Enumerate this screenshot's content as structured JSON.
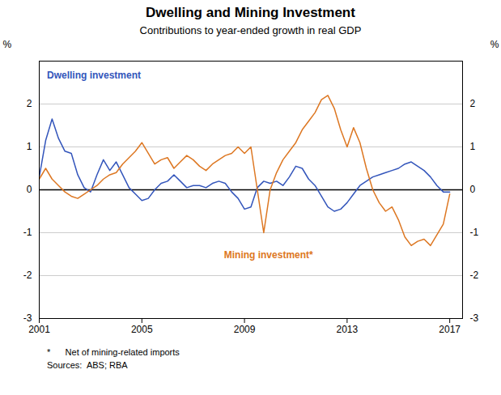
{
  "chart_data": {
    "type": "line",
    "title": "Dwelling and Mining Investment",
    "subtitle": "Contributions to year-ended growth in real GDP",
    "ylabel": "%",
    "y2label": "%",
    "xlim": [
      2001.0,
      2017.5
    ],
    "xticks": [
      2001,
      2005,
      2009,
      2013,
      2017
    ],
    "ylim": [
      -3,
      3
    ],
    "yticks": [
      -3,
      -2,
      -1,
      0,
      1,
      2,
      {
        "value": 3,
        "label": ""
      }
    ],
    "grid": true,
    "x": [
      2001.0,
      2001.25,
      2001.5,
      2001.75,
      2002.0,
      2002.25,
      2002.5,
      2002.75,
      2003.0,
      2003.25,
      2003.5,
      2003.75,
      2004.0,
      2004.25,
      2004.5,
      2004.75,
      2005.0,
      2005.25,
      2005.5,
      2005.75,
      2006.0,
      2006.25,
      2006.5,
      2006.75,
      2007.0,
      2007.25,
      2007.5,
      2007.75,
      2008.0,
      2008.25,
      2008.5,
      2008.75,
      2009.0,
      2009.25,
      2009.5,
      2009.75,
      2010.0,
      2010.25,
      2010.5,
      2010.75,
      2011.0,
      2011.25,
      2011.5,
      2011.75,
      2012.0,
      2012.25,
      2012.5,
      2012.75,
      2013.0,
      2013.25,
      2013.5,
      2013.75,
      2014.0,
      2014.25,
      2014.5,
      2014.75,
      2015.0,
      2015.25,
      2015.5,
      2015.75,
      2016.0,
      2016.25,
      2016.5,
      2016.75,
      2017.0
    ],
    "series": [
      {
        "name": "Dwelling investment",
        "color": "#3355bb",
        "values": [
          0.3,
          1.15,
          1.65,
          1.2,
          0.9,
          0.85,
          0.35,
          0.05,
          -0.05,
          0.35,
          0.7,
          0.45,
          0.65,
          0.35,
          0.05,
          -0.1,
          -0.25,
          -0.2,
          0.0,
          0.15,
          0.2,
          0.35,
          0.2,
          0.05,
          0.1,
          0.1,
          0.05,
          0.15,
          0.2,
          0.15,
          -0.05,
          -0.2,
          -0.45,
          -0.4,
          0.05,
          0.2,
          0.15,
          0.2,
          0.1,
          0.3,
          0.55,
          0.5,
          0.25,
          0.1,
          -0.15,
          -0.4,
          -0.5,
          -0.45,
          -0.3,
          -0.1,
          0.1,
          0.2,
          0.3,
          0.35,
          0.4,
          0.45,
          0.5,
          0.6,
          0.65,
          0.55,
          0.45,
          0.3,
          0.1,
          -0.05,
          -0.05
        ]
      },
      {
        "name": "Mining investment*",
        "color": "#dd7722",
        "values": [
          0.25,
          0.5,
          0.25,
          0.1,
          -0.05,
          -0.15,
          -0.2,
          -0.1,
          0.0,
          0.1,
          0.25,
          0.35,
          0.4,
          0.6,
          0.75,
          0.9,
          1.1,
          0.85,
          0.6,
          0.7,
          0.75,
          0.5,
          0.65,
          0.8,
          0.7,
          0.55,
          0.45,
          0.6,
          0.7,
          0.8,
          0.85,
          1.0,
          0.85,
          1.0,
          0.0,
          -1.0,
          0.0,
          0.4,
          0.7,
          0.9,
          1.1,
          1.4,
          1.6,
          1.8,
          2.1,
          2.2,
          1.9,
          1.4,
          1.0,
          1.45,
          1.1,
          0.5,
          0.0,
          -0.3,
          -0.5,
          -0.4,
          -0.7,
          -1.1,
          -1.3,
          -1.2,
          -1.15,
          -1.3,
          -1.05,
          -0.8,
          -0.1
        ]
      }
    ],
    "annotations": [
      {
        "text": "Dwelling investment",
        "x": 2001.3,
        "y": 2.6,
        "color": "#3355bb"
      },
      {
        "text": "Mining investment*",
        "x": 2008.2,
        "y": -1.6,
        "color": "#dd7722"
      }
    ],
    "footnotes": [
      "*      Net of mining-related imports",
      "Sources:  ABS; RBA"
    ]
  }
}
